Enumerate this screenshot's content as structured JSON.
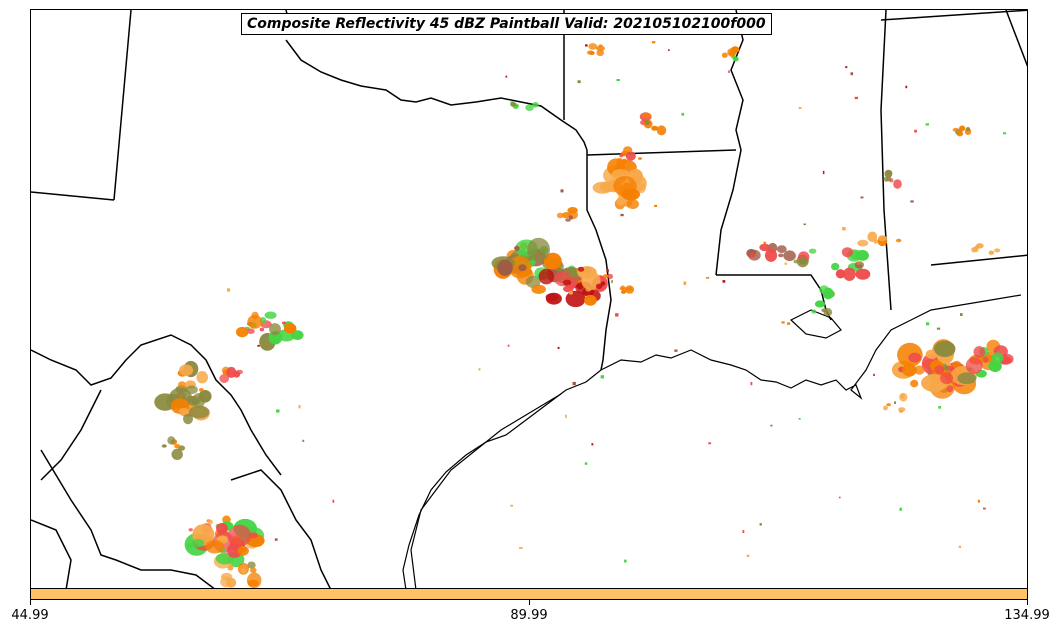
{
  "title": "Composite Reflectivity 45 dBZ Paintball Valid: 202105102100f000",
  "colorbar": {
    "color": "#ffc266",
    "ticks": [
      "44.99",
      "89.99",
      "134.99"
    ]
  },
  "palette": {
    "orange": "#f58000",
    "light_orange": "#f7a94a",
    "green": "#45d545",
    "red": "#ef4b4b",
    "olive": "#8a8a3f",
    "brown": "#a05a45",
    "dark_red": "#c01010"
  }
}
